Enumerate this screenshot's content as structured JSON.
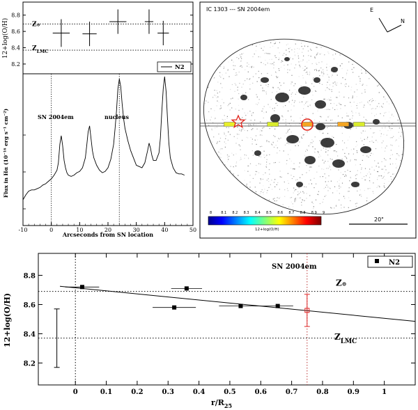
{
  "chart_data": [
    {
      "id": "top_left_abundance",
      "type": "scatter",
      "ylabel": "12+log(O/H)",
      "yticks": [
        "8.2",
        "8.4",
        "8.6",
        "8.8"
      ],
      "ylim": [
        8.08,
        8.96
      ],
      "xlim": [
        -10,
        50
      ],
      "ref_lines": [
        {
          "label": "Z",
          "sub": "⊙",
          "y": 8.69
        },
        {
          "label": "Z",
          "sub": "LMC",
          "y": 8.37
        }
      ],
      "legend": "N2",
      "points": [
        {
          "x": 3.5,
          "y": 8.58,
          "xerr": 3.0,
          "yerr": 0.17
        },
        {
          "x": 13.5,
          "y": 8.57,
          "xerr": 2.5,
          "yerr": 0.15
        },
        {
          "x": 23.5,
          "y": 8.72,
          "xerr": 3.0,
          "yerr": 0.15
        },
        {
          "x": 34.5,
          "y": 8.72,
          "xerr": 1.5,
          "yerr": 0.15
        },
        {
          "x": 39.5,
          "y": 8.58,
          "xerr": 2.0,
          "yerr": 0.15
        }
      ]
    },
    {
      "id": "spectrum_profile",
      "type": "line",
      "xlabel": "Arcseconds from SN location",
      "ylabel": "Flux in Hα (10⁻¹⁶ erg s⁻¹ cm⁻²)",
      "xticks": [
        "-10",
        "0",
        "10",
        "20",
        "30",
        "40",
        "50"
      ],
      "xlim": [
        -10,
        50
      ],
      "ylim": [
        0,
        100
      ],
      "annotations": [
        {
          "text": "SN 2004em",
          "x": 0
        },
        {
          "text": "nucleus",
          "x": 24
        }
      ],
      "vlines": [
        0,
        24
      ],
      "x": [
        -10,
        -9,
        -8,
        -7,
        -6,
        -5,
        -4,
        -3,
        -2,
        -1,
        0,
        1,
        2,
        2.5,
        3,
        3.5,
        4,
        4.5,
        5,
        5.5,
        6,
        7,
        8,
        9,
        10,
        11,
        12,
        12.5,
        13,
        13.5,
        14,
        14.5,
        15,
        16,
        17,
        18,
        19,
        20,
        21,
        22,
        22.5,
        23,
        23.5,
        24,
        24.5,
        25,
        25.5,
        26,
        27,
        28,
        29,
        30,
        31,
        32,
        33,
        34,
        34.5,
        35,
        35.5,
        36,
        37,
        38,
        38.5,
        39,
        39.5,
        40,
        40.5,
        41,
        41.5,
        42,
        43,
        44,
        45,
        46,
        47
      ],
      "y": [
        0,
        4,
        7,
        8,
        8,
        9,
        10,
        12,
        13,
        15,
        17,
        20,
        24,
        30,
        45,
        52,
        44,
        32,
        26,
        22,
        20,
        19,
        20,
        22,
        23,
        26,
        34,
        44,
        55,
        60,
        50,
        40,
        34,
        28,
        24,
        22,
        23,
        26,
        33,
        45,
        58,
        72,
        90,
        98,
        92,
        78,
        66,
        58,
        48,
        40,
        34,
        28,
        27,
        26,
        30,
        40,
        46,
        42,
        36,
        32,
        32,
        38,
        50,
        72,
        90,
        100,
        88,
        66,
        46,
        34,
        26,
        22,
        21,
        21,
        20
      ]
    },
    {
      "id": "image_panel",
      "type": "image",
      "title": "IC 1303 --- SN 2004em",
      "compass": {
        "east": "E",
        "north": "N"
      },
      "scalebar": "20\"",
      "colorbar": {
        "label": "12+log(O/H)",
        "ticks": [
          "8",
          "8.1",
          "8.2",
          "8.3",
          "8.4",
          "8.5",
          "8.6",
          "8.7",
          "8.8",
          "8.9",
          "9"
        ]
      },
      "slit_segments": [
        {
          "x": 0.137,
          "color": "#e8ef2a"
        },
        {
          "x": 0.338,
          "color": "#d9ec2c"
        },
        {
          "x": 0.497,
          "color": "#f5a623"
        },
        {
          "x": 0.664,
          "color": "#f5a623"
        },
        {
          "x": 0.737,
          "color": "#d9ec2c"
        }
      ]
    },
    {
      "id": "gradient",
      "type": "scatter",
      "xlabel": "r/R",
      "xlabel_sub": "25",
      "ylabel": "12+log(O/H)",
      "xlim": [
        -0.12,
        1.1
      ],
      "ylim": [
        8.05,
        8.95
      ],
      "xticks": [
        "0",
        "0.1",
        "0.2",
        "0.3",
        "0.4",
        "0.5",
        "0.6",
        "0.7",
        "0.8",
        "0.9",
        "1"
      ],
      "yticks": [
        "8.2",
        "8.4",
        "8.6",
        "8.8"
      ],
      "legend": "N2",
      "annotation": "SN 2004em",
      "ref_lines": [
        {
          "label": "Z",
          "sub": "⊙",
          "y": 8.69
        },
        {
          "label": "Z",
          "sub": "LMC",
          "y": 8.37
        }
      ],
      "vlines": [
        0,
        0.75
      ],
      "fit": {
        "x0": -0.05,
        "y0": 8.725,
        "x1": 1.1,
        "y1": 8.485
      },
      "error_ref": {
        "x": -0.06,
        "ylo": 8.17,
        "yhi": 8.57
      },
      "points": [
        {
          "x": 0.022,
          "y": 8.72,
          "xerr": 0.055
        },
        {
          "x": 0.32,
          "y": 8.58,
          "xerr": 0.07
        },
        {
          "x": 0.36,
          "y": 8.71,
          "xerr": 0.05
        },
        {
          "x": 0.535,
          "y": 8.59,
          "xerr": 0.07
        },
        {
          "x": 0.655,
          "y": 8.59,
          "xerr": 0.05
        }
      ],
      "sn_point": {
        "x": 0.75,
        "y": 8.56,
        "yerr": 0.11
      }
    }
  ]
}
